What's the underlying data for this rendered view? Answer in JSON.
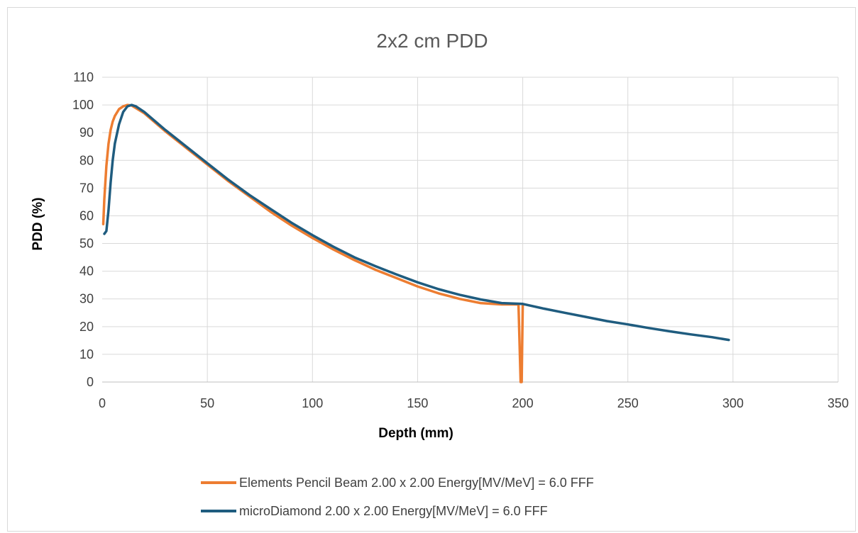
{
  "chart_data": {
    "type": "line",
    "title": "2x2 cm PDD",
    "xlabel": "Depth (mm)",
    "ylabel": "PDD (%)",
    "xlim": [
      0,
      350
    ],
    "ylim": [
      0,
      110
    ],
    "x_ticks": [
      "0",
      "50",
      "100",
      "150",
      "200",
      "250",
      "300",
      "350"
    ],
    "y_ticks": [
      "0",
      "10",
      "20",
      "30",
      "40",
      "50",
      "60",
      "70",
      "80",
      "90",
      "100",
      "110"
    ],
    "grid": true,
    "legend_position": "bottom",
    "series": [
      {
        "name": "Elements Pencil Beam 2.00 x 2.00  Energy[MV/MeV] = 6.0 FFF",
        "color": "#ED7D31",
        "x": [
          0.5,
          1,
          2,
          3,
          4,
          5,
          6,
          8,
          10,
          12,
          14,
          20,
          30,
          40,
          50,
          60,
          70,
          80,
          90,
          100,
          110,
          120,
          130,
          140,
          150,
          160,
          170,
          180,
          190,
          198,
          199,
          199.5,
          200,
          200.5
        ],
        "y": [
          57,
          66,
          78,
          86,
          91,
          94,
          96,
          98.5,
          99.5,
          100,
          99.8,
          97,
          90.5,
          84.5,
          78.5,
          72.5,
          67,
          61.5,
          56.5,
          52,
          47.8,
          44,
          40.5,
          37.5,
          34.5,
          32,
          30,
          28.5,
          28,
          28,
          0,
          0,
          28,
          28
        ]
      },
      {
        "name": "microDiamond 2.00 x 2.00  Energy[MV/MeV] = 6.0 FFF",
        "color": "#1F5C7F",
        "x": [
          1,
          2,
          3,
          4,
          5,
          6,
          8,
          10,
          12,
          14,
          16,
          20,
          30,
          40,
          50,
          60,
          70,
          80,
          90,
          100,
          110,
          120,
          130,
          140,
          150,
          160,
          170,
          180,
          190,
          200,
          210,
          220,
          230,
          240,
          250,
          260,
          270,
          280,
          290,
          298
        ],
        "y": [
          53.5,
          54.5,
          62,
          72,
          80,
          86,
          93,
          97.5,
          99.5,
          100,
          99.5,
          97.5,
          91,
          85,
          79,
          73,
          67.5,
          62.5,
          57.5,
          53,
          48.8,
          45,
          41.8,
          38.8,
          36,
          33.5,
          31.5,
          29.8,
          28.5,
          28.2,
          26.5,
          25,
          23.5,
          22,
          20.8,
          19.5,
          18.3,
          17.2,
          16.2,
          15.2
        ]
      }
    ]
  }
}
